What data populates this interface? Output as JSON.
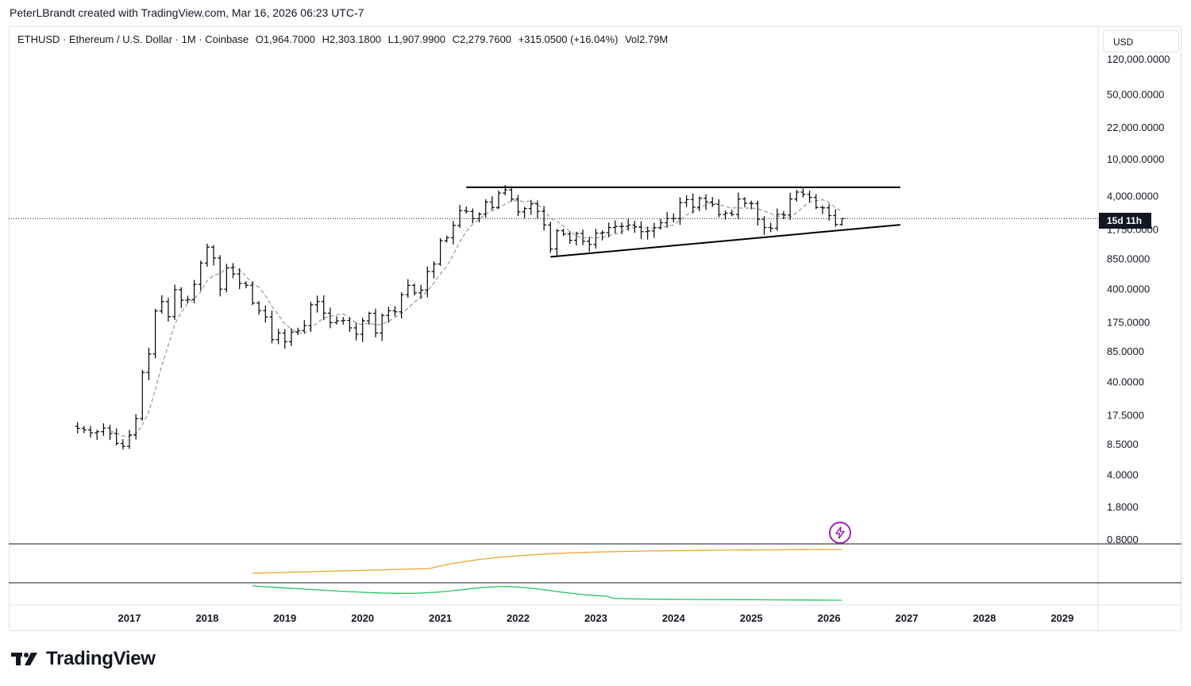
{
  "header": {
    "credit": "PeterLBrandt created with TradingView.com, Mar 16, 2026 06:23 UTC-7"
  },
  "legend": {
    "symbol": "ETHUSD · Ethereum / U.S. Dollar · 1M · Coinbase",
    "open": "O1,964.7000",
    "high": "H2,303.1800",
    "low": "L1,907.9900",
    "close": "C2,279.7600",
    "change": "+315.0500 (+16.04%)",
    "volume": "Vol2.79M"
  },
  "price_scale": {
    "currency": "USD",
    "countdown": "15d 11h"
  },
  "brand": {
    "name": "TradingView"
  },
  "colors": {
    "candle": "#000000",
    "ma": "#9598a1",
    "indicator_orange": "#f0a430",
    "indicator_green": "#22c55e",
    "accent_purple": "#9c27b0"
  },
  "chart_data": {
    "type": "ohlc",
    "title": "ETHUSD · Ethereum / U.S. Dollar · 1M · Coinbase",
    "y_scale": "log",
    "y_ticks": [
      {
        "value": 120000,
        "label": "120,000.0000"
      },
      {
        "value": 50000,
        "label": "50,000.0000"
      },
      {
        "value": 22000,
        "label": "22,000.0000"
      },
      {
        "value": 10000,
        "label": "10,000.0000"
      },
      {
        "value": 4000,
        "label": "4,000.0000"
      },
      {
        "value": 1750,
        "label": "1,750.0000"
      },
      {
        "value": 850,
        "label": "850.0000"
      },
      {
        "value": 400,
        "label": "400.0000"
      },
      {
        "value": 175,
        "label": "175.0000"
      },
      {
        "value": 85,
        "label": "85.0000"
      },
      {
        "value": 40,
        "label": "40.0000"
      },
      {
        "value": 17.5,
        "label": "17.5000"
      },
      {
        "value": 8.5,
        "label": "8.5000"
      },
      {
        "value": 4,
        "label": "4.0000"
      },
      {
        "value": 1.8,
        "label": "1.8000"
      },
      {
        "value": 0.8,
        "label": "0.8000"
      }
    ],
    "x_ticks": [
      "2017",
      "2018",
      "2019",
      "2020",
      "2021",
      "2022",
      "2023",
      "2024",
      "2025",
      "2026",
      "2027",
      "2028",
      "2029"
    ],
    "last_price": 2279.76,
    "trendlines": [
      {
        "name": "resistance",
        "from": [
          "2021-05",
          4950
        ],
        "to": [
          "2026-12",
          4950
        ]
      },
      {
        "name": "support",
        "from": [
          "2022-06",
          880
        ],
        "to": [
          "2026-12",
          1950
        ]
      }
    ],
    "monthly_closes": [
      [
        "2016-05",
        12.5
      ],
      [
        "2016-06",
        12.0
      ],
      [
        "2016-07",
        11.2
      ],
      [
        "2016-08",
        11.5
      ],
      [
        "2016-09",
        12.6
      ],
      [
        "2016-10",
        11.0
      ],
      [
        "2016-11",
        8.6
      ],
      [
        "2016-12",
        8.0
      ],
      [
        "2017-01",
        10.6
      ],
      [
        "2017-02",
        15.9
      ],
      [
        "2017-03",
        50.0
      ],
      [
        "2017-04",
        79.0
      ],
      [
        "2017-05",
        230.0
      ],
      [
        "2017-06",
        290.0
      ],
      [
        "2017-07",
        200.0
      ],
      [
        "2017-08",
        390.0
      ],
      [
        "2017-09",
        300.0
      ],
      [
        "2017-10",
        305.0
      ],
      [
        "2017-11",
        445.0
      ],
      [
        "2017-12",
        755.0
      ],
      [
        "2018-01",
        1120.0
      ],
      [
        "2018-02",
        855.0
      ],
      [
        "2018-03",
        395.0
      ],
      [
        "2018-04",
        670.0
      ],
      [
        "2018-05",
        575.0
      ],
      [
        "2018-06",
        455.0
      ],
      [
        "2018-07",
        435.0
      ],
      [
        "2018-08",
        280.0
      ],
      [
        "2018-09",
        232.0
      ],
      [
        "2018-10",
        198.0
      ],
      [
        "2018-11",
        113.0
      ],
      [
        "2018-12",
        133.0
      ],
      [
        "2019-01",
        107.0
      ],
      [
        "2019-02",
        136.0
      ],
      [
        "2019-03",
        141.0
      ],
      [
        "2019-04",
        160.0
      ],
      [
        "2019-05",
        268.0
      ],
      [
        "2019-06",
        290.0
      ],
      [
        "2019-07",
        218.0
      ],
      [
        "2019-08",
        172.0
      ],
      [
        "2019-09",
        180.0
      ],
      [
        "2019-10",
        182.0
      ],
      [
        "2019-11",
        151.0
      ],
      [
        "2019-12",
        129.0
      ],
      [
        "2020-01",
        180.0
      ],
      [
        "2020-02",
        217.0
      ],
      [
        "2020-03",
        133.0
      ],
      [
        "2020-04",
        206.0
      ],
      [
        "2020-05",
        231.0
      ],
      [
        "2020-06",
        225.0
      ],
      [
        "2020-07",
        345.0
      ],
      [
        "2020-08",
        434.0
      ],
      [
        "2020-09",
        360.0
      ],
      [
        "2020-10",
        386.0
      ],
      [
        "2020-11",
        612.0
      ],
      [
        "2020-12",
        737.0
      ],
      [
        "2021-01",
        1314.0
      ],
      [
        "2021-02",
        1416.0
      ],
      [
        "2021-03",
        1919.0
      ],
      [
        "2021-04",
        2773.0
      ],
      [
        "2021-05",
        2714.0
      ],
      [
        "2021-06",
        2275.0
      ],
      [
        "2021-07",
        2536.0
      ],
      [
        "2021-08",
        3433.0
      ],
      [
        "2021-09",
        3001.0
      ],
      [
        "2021-10",
        4288.0
      ],
      [
        "2021-11",
        4630.0
      ],
      [
        "2021-12",
        3683.0
      ],
      [
        "2022-01",
        2688.0
      ],
      [
        "2022-02",
        2920.0
      ],
      [
        "2022-03",
        3282.0
      ],
      [
        "2022-04",
        2726.0
      ],
      [
        "2022-05",
        1942.0
      ],
      [
        "2022-06",
        1070.0
      ],
      [
        "2022-07",
        1680.0
      ],
      [
        "2022-08",
        1554.0
      ],
      [
        "2022-09",
        1328.0
      ],
      [
        "2022-10",
        1572.0
      ],
      [
        "2022-11",
        1295.0
      ],
      [
        "2022-12",
        1196.0
      ],
      [
        "2023-01",
        1585.0
      ],
      [
        "2023-02",
        1606.0
      ],
      [
        "2023-03",
        1822.0
      ],
      [
        "2023-04",
        1869.0
      ],
      [
        "2023-05",
        1874.0
      ],
      [
        "2023-06",
        1934.0
      ],
      [
        "2023-07",
        1856.0
      ],
      [
        "2023-08",
        1645.0
      ],
      [
        "2023-09",
        1671.0
      ],
      [
        "2023-10",
        1816.0
      ],
      [
        "2023-11",
        2052.0
      ],
      [
        "2023-12",
        2282.0
      ],
      [
        "2024-01",
        2283.0
      ],
      [
        "2024-02",
        3383.0
      ],
      [
        "2024-03",
        3647.0
      ],
      [
        "2024-04",
        3014.0
      ],
      [
        "2024-05",
        3762.0
      ],
      [
        "2024-06",
        3433.0
      ],
      [
        "2024-07",
        3232.0
      ],
      [
        "2024-08",
        2513.0
      ],
      [
        "2024-09",
        2603.0
      ],
      [
        "2024-10",
        2518.0
      ],
      [
        "2024-11",
        3703.0
      ],
      [
        "2024-12",
        3332.0
      ],
      [
        "2025-01",
        3300.0
      ],
      [
        "2025-02",
        2237.0
      ],
      [
        "2025-03",
        1822.0
      ],
      [
        "2025-04",
        1793.0
      ],
      [
        "2025-05",
        2528.0
      ],
      [
        "2025-06",
        2486.0
      ],
      [
        "2025-07",
        3698.0
      ],
      [
        "2025-08",
        4390.0
      ],
      [
        "2025-09",
        4146.0
      ],
      [
        "2025-10",
        3848.0
      ],
      [
        "2025-11",
        3000.0
      ],
      [
        "2025-12",
        2970.0
      ],
      [
        "2026-01",
        2450.0
      ],
      [
        "2026-02",
        1964.7
      ],
      [
        "2026-03",
        2279.76
      ]
    ],
    "indicators": [
      {
        "name": "",
        "color": "#f0a430",
        "start": "2018-08",
        "end": "2026-03"
      },
      {
        "name": "",
        "color": "#22c55e",
        "start": "2018-08",
        "end": "2026-03"
      }
    ]
  }
}
